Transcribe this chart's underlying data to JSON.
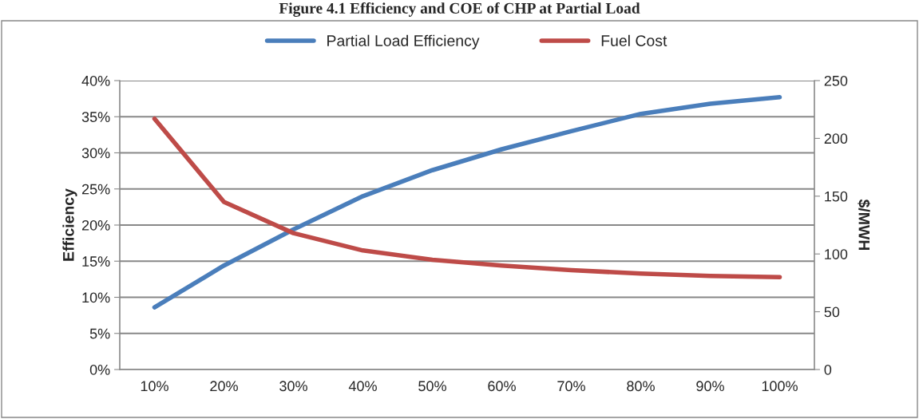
{
  "chart_data": {
    "type": "line",
    "title": "Figure 4.1 Efficiency and COE of CHP at Partial Load",
    "categories": [
      "10%",
      "20%",
      "30%",
      "40%",
      "50%",
      "60%",
      "70%",
      "80%",
      "90%",
      "100%"
    ],
    "series": [
      {
        "name": "Partial Load Efficiency",
        "color": "#4a7ebb",
        "values": [
          8.6,
          14.4,
          19.4,
          24.0,
          27.6,
          30.5,
          33.0,
          35.4,
          36.8,
          37.7
        ]
      },
      {
        "name": "Fuel Cost",
        "color": "#be4b48",
        "axis": "y2",
        "values": [
          217,
          145,
          118,
          103,
          95,
          90,
          86,
          83,
          81,
          80
        ]
      }
    ],
    "ylabel": "Efficiency",
    "y2label": "$/MWH",
    "ylim": [
      0,
      40
    ],
    "yticks": [
      {
        "value": 0,
        "label": "0%"
      },
      {
        "value": 5,
        "label": "5%"
      },
      {
        "value": 10,
        "label": "10%"
      },
      {
        "value": 15,
        "label": "15%"
      },
      {
        "value": 20,
        "label": "20%"
      },
      {
        "value": 25,
        "label": "25%"
      },
      {
        "value": 30,
        "label": "30%"
      },
      {
        "value": 35,
        "label": "35%"
      },
      {
        "value": 40,
        "label": "40%"
      }
    ],
    "y2lim": [
      0,
      250
    ],
    "y2ticks": [
      0,
      50,
      100,
      150,
      200,
      250
    ],
    "grid": "y",
    "legend": "top",
    "marker": "none",
    "line_style": "solid"
  }
}
